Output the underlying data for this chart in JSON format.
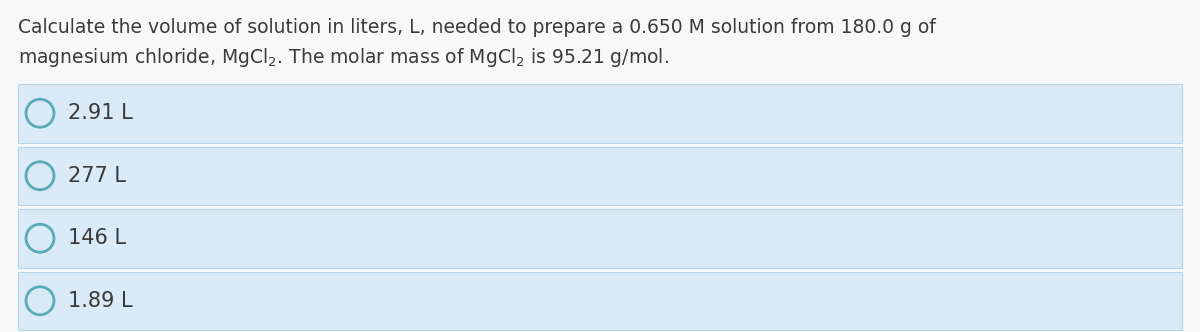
{
  "question_line1": "Calculate the volume of solution in liters, L, needed to prepare a 0.650 M solution from 180.0 g of",
  "question_line2": "magnesium chloride, MgCl$_2$. The molar mass of MgCl$_2$ is 95.21 g/mol.",
  "options": [
    "2.91 L",
    "277 L",
    "146 L",
    "1.89 L"
  ],
  "bg_color": "#f8f8f8",
  "option_bg_color": "#daeaf7",
  "option_border_color": "#b8d4e8",
  "text_color": "#3a3a3a",
  "circle_edge_color": "#5aabb8",
  "question_fontsize": 13.5,
  "option_fontsize": 15,
  "fig_width": 12.0,
  "fig_height": 3.32,
  "dpi": 100
}
